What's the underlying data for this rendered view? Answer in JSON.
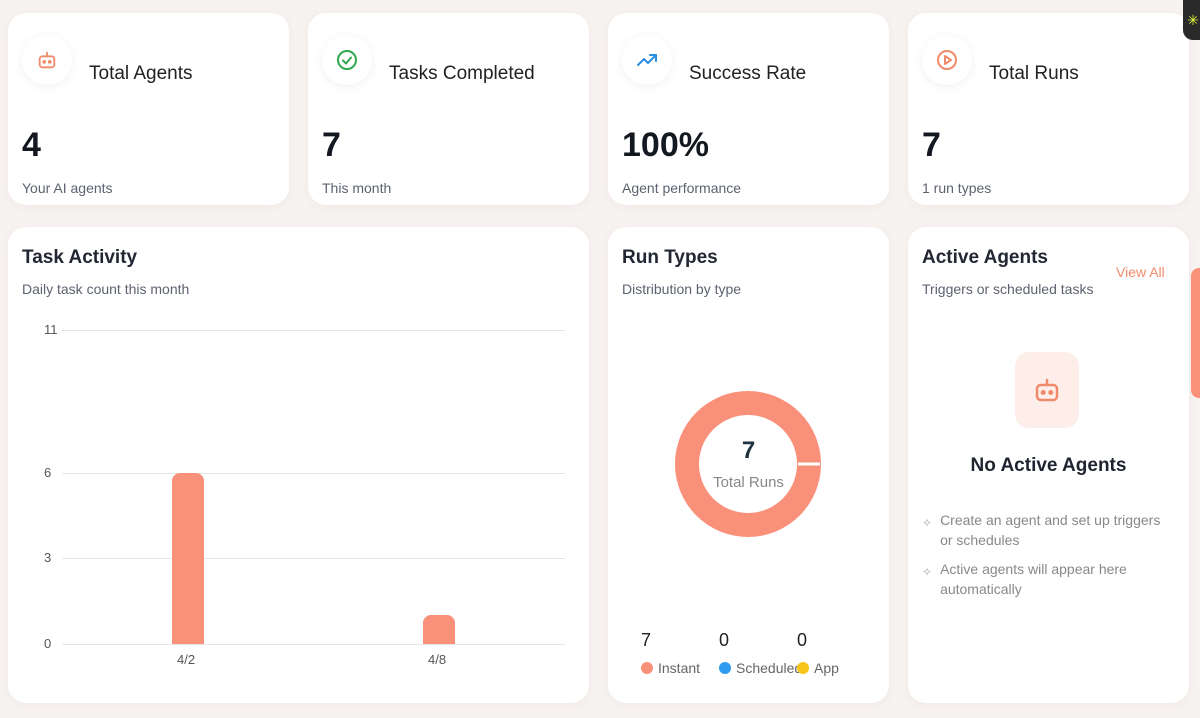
{
  "stats": [
    {
      "label": "Total Agents",
      "value": "4",
      "sub": "Your AI agents",
      "icon": "robot-icon"
    },
    {
      "label": "Tasks Completed",
      "value": "7",
      "sub": "This month",
      "icon": "check-circle-icon"
    },
    {
      "label": "Success Rate",
      "value": "100%",
      "sub": "Agent performance",
      "icon": "trending-up-icon"
    },
    {
      "label": "Total Runs",
      "value": "7",
      "sub": "1 run types",
      "icon": "play-circle-icon"
    }
  ],
  "task_activity": {
    "title": "Task Activity",
    "subtitle": "Daily task count this month"
  },
  "chart_data": {
    "type": "bar",
    "categories": [
      "4/2",
      "4/8"
    ],
    "values": [
      6,
      1
    ],
    "yticks": [
      "11",
      "6",
      "3",
      "0"
    ],
    "ylim": [
      0,
      11
    ],
    "grid": true,
    "color": "#f9907a"
  },
  "run_types": {
    "title": "Run Types",
    "subtitle": "Distribution by type",
    "total": "7",
    "total_label": "Total Runs",
    "legend": [
      {
        "value": "7",
        "label": "Instant",
        "color": "#f9907a"
      },
      {
        "value": "0",
        "label": "Scheduled",
        "color": "#2d9cf0"
      },
      {
        "value": "0",
        "label": "App",
        "color": "#f5c518"
      }
    ]
  },
  "active_agents": {
    "title": "Active Agents",
    "subtitle": "Triggers or scheduled tasks",
    "view_all": "View All",
    "empty_title": "No Active Agents",
    "tips": [
      "Create an agent and set up triggers or schedules",
      "Active agents will appear here automatically"
    ]
  },
  "colors": {
    "accent": "#f9907a",
    "success": "#2fa84f",
    "trend": "#2b8de0"
  }
}
